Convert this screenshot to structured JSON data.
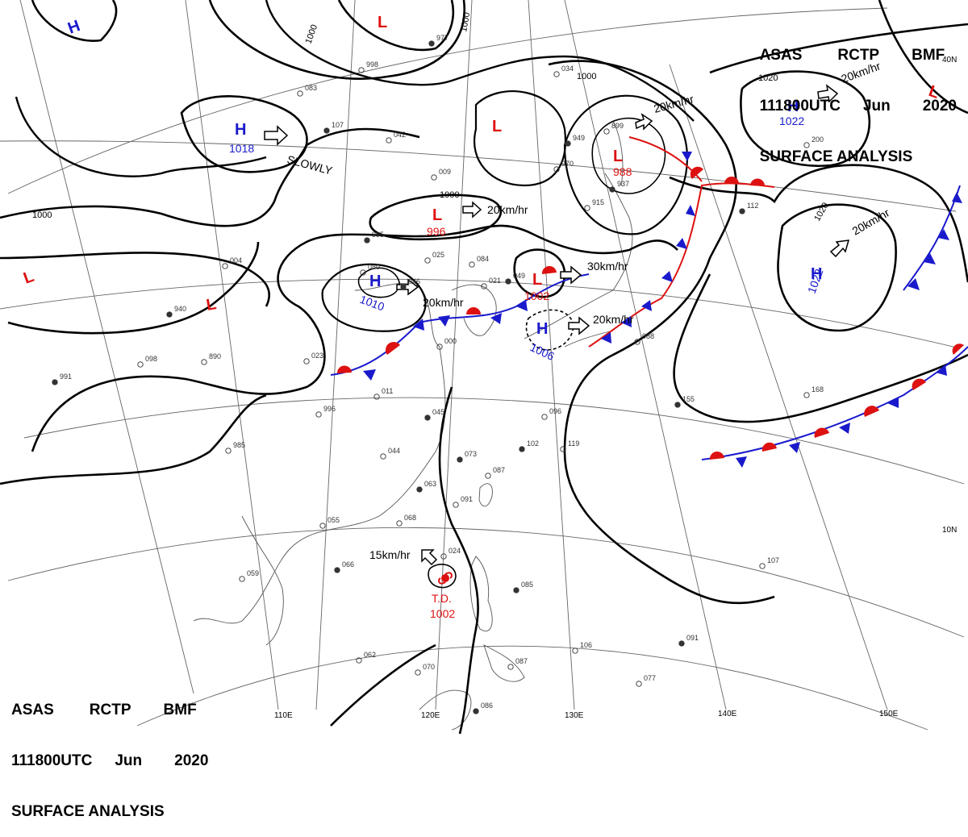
{
  "header": {
    "line1": [
      "ASAS",
      "RCTP",
      "BMF"
    ],
    "line2": [
      "111800UTC",
      "Jun",
      "2020"
    ],
    "line3": "SURFACE ANALYSIS"
  },
  "colors": {
    "high": "#1a1acc",
    "low": "#dd1111",
    "isobar": "#000000",
    "coast": "#555555",
    "grid": "#666666"
  },
  "graticule": {
    "lon_labels": [
      "110E",
      "120E",
      "130E",
      "140E",
      "150E"
    ],
    "lat_labels": [
      "10N",
      "40N"
    ]
  },
  "isobar_labels": [
    "1000",
    "1000",
    "1000",
    "1000",
    "1000",
    "1020",
    "1020"
  ],
  "pressure_centers": [
    {
      "type": "H",
      "value": ""
    },
    {
      "type": "H",
      "value": "1018"
    },
    {
      "type": "L",
      "value": ""
    },
    {
      "type": "L",
      "value": ""
    },
    {
      "type": "L",
      "value": "996"
    },
    {
      "type": "H",
      "value": "1010"
    },
    {
      "type": "L",
      "value": "1002"
    },
    {
      "type": "H",
      "value": "1006"
    },
    {
      "type": "L",
      "value": ""
    },
    {
      "type": "L",
      "value": "988"
    },
    {
      "type": "H",
      "value": "1022"
    },
    {
      "type": "L",
      "value": ""
    },
    {
      "type": "H",
      "value": "1022"
    },
    {
      "type": "L",
      "value": ""
    },
    {
      "type": "T.D.",
      "value": "1002"
    }
  ],
  "motion_labels": [
    "SLOWLY",
    "20km/hr",
    "20km/hr",
    "30km/hr",
    "20km/hr",
    "20km/hr",
    "20km/hr",
    "20km/hr",
    "15km/hr"
  ],
  "stations": [
    "977",
    "998",
    "083",
    "107",
    "042",
    "009",
    "995",
    "004",
    "080",
    "046",
    "025",
    "084",
    "049",
    "021",
    "023",
    "940",
    "890",
    "098",
    "991",
    "996",
    "985",
    "045",
    "044",
    "011",
    "073",
    "087",
    "091",
    "102",
    "119",
    "096",
    "063",
    "068",
    "055",
    "066",
    "059",
    "024",
    "085",
    "062",
    "070",
    "086",
    "087",
    "106",
    "091",
    "077",
    "107",
    "155",
    "168",
    "200",
    "112",
    "088",
    "034",
    "949",
    "899",
    "970",
    "937",
    "915",
    "000"
  ]
}
